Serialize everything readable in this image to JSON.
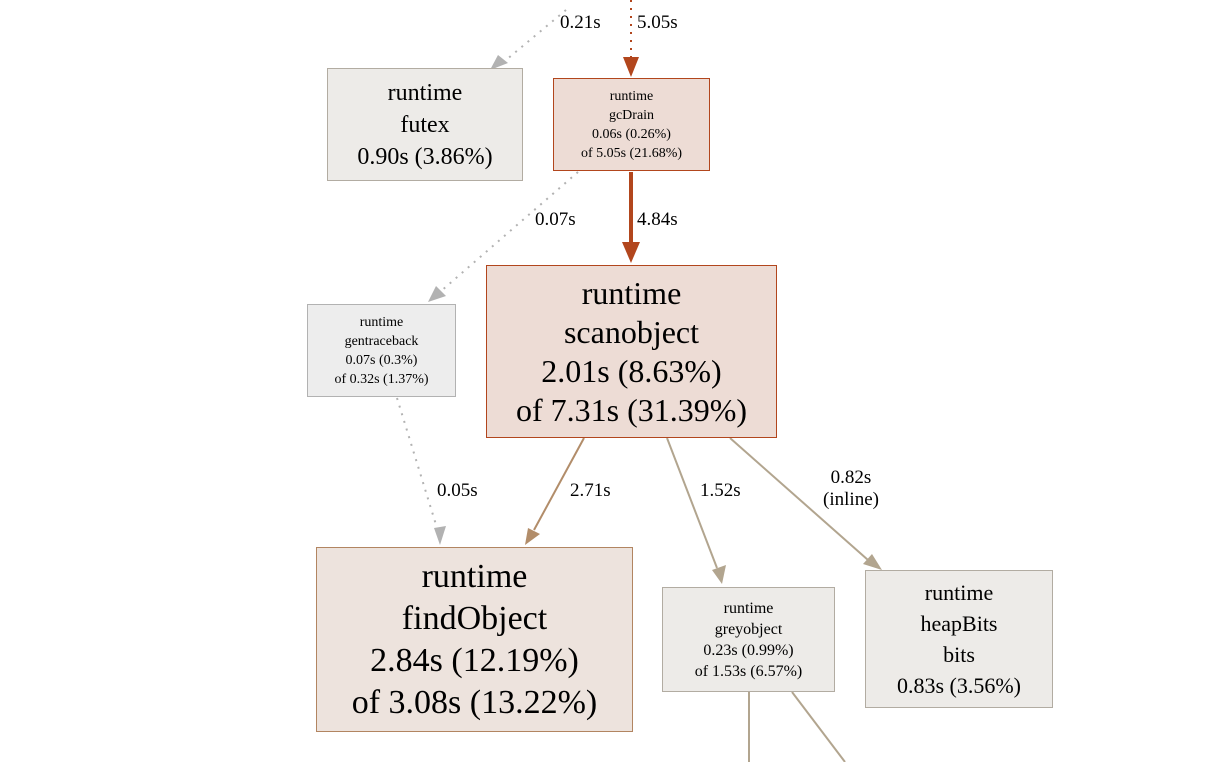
{
  "colors": {
    "hot_edge": "#b2461d",
    "warm_edge": "#b28d6a",
    "mild_edge": "#b2a58f",
    "cold_edge": "#b2b2b2",
    "hot_fill": "#eddcd5",
    "warm_fill": "#ede3dd",
    "neutral_fill": "#edebe8",
    "cold_fill": "#ededed",
    "hot_border": "#b2461d",
    "warm_border": "#b28561",
    "neutral_border": "#b2aca2",
    "cold_border": "#b2b2b2"
  },
  "nodes": {
    "futex": {
      "package": "runtime",
      "function": "futex",
      "flat": "0.90s (3.86%)"
    },
    "gcDrain": {
      "package": "runtime",
      "function": "gcDrain",
      "flat": "0.06s (0.26%)",
      "cum": "of 5.05s (21.68%)"
    },
    "gentraceback": {
      "package": "runtime",
      "function": "gentraceback",
      "flat": "0.07s (0.3%)",
      "cum": "of 0.32s (1.37%)"
    },
    "scanobject": {
      "package": "runtime",
      "function": "scanobject",
      "flat": "2.01s (8.63%)",
      "cum": "of 7.31s (31.39%)"
    },
    "findObject": {
      "package": "runtime",
      "function": "findObject",
      "flat": "2.84s (12.19%)",
      "cum": "of 3.08s (13.22%)"
    },
    "greyobject": {
      "package": "runtime",
      "function": "greyobject",
      "flat": "0.23s (0.99%)",
      "cum": "of 1.53s (6.57%)"
    },
    "heapBits": {
      "package": "runtime",
      "function": "heapBits",
      "method": "bits",
      "flat": "0.83s (3.56%)"
    }
  },
  "edges": {
    "to_futex": {
      "label": "0.21s"
    },
    "to_gcDrain": {
      "label": "5.05s"
    },
    "gcDrain_gentraceback": {
      "label": "0.07s"
    },
    "gcDrain_scanobject": {
      "label": "4.84s"
    },
    "gentraceback_findObject": {
      "label": "0.05s"
    },
    "scanobject_findObject": {
      "label": "2.71s"
    },
    "scanobject_greyobject": {
      "label": "1.52s"
    },
    "scanobject_heapBits": {
      "label": "0.82s",
      "note": "(inline)"
    }
  }
}
